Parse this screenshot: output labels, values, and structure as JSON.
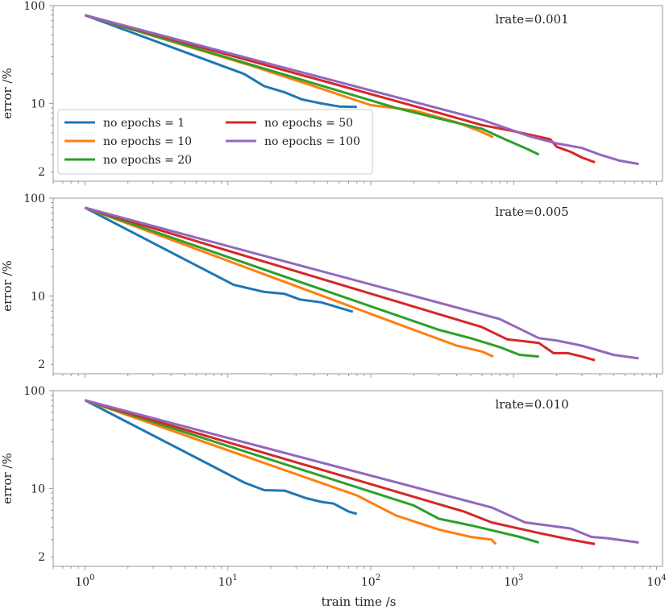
{
  "chart_data": {
    "type": "line",
    "xscale": "log",
    "yscale": "log",
    "xlabel": "train time /s",
    "ylabel": "error /%",
    "xlim": [
      0.6,
      11000
    ],
    "ylim": [
      1.6,
      100
    ],
    "xticks": [
      {
        "value": 1,
        "base": "10",
        "exp": "0"
      },
      {
        "value": 10,
        "base": "10",
        "exp": "1"
      },
      {
        "value": 100,
        "base": "10",
        "exp": "2"
      },
      {
        "value": 1000,
        "base": "10",
        "exp": "3"
      },
      {
        "value": 10000,
        "base": "10",
        "exp": "4"
      }
    ],
    "yticks": [
      {
        "value": 100,
        "label": "100"
      },
      {
        "value": 10,
        "label": "10"
      },
      {
        "value": 2,
        "label": "2"
      }
    ],
    "colors": {
      "no epochs = 1": "#1f77b4",
      "no epochs = 10": "#ff7f0e",
      "no epochs = 20": "#2ca02c",
      "no epochs = 50": "#d62728",
      "no epochs = 100": "#9467bd"
    },
    "legend": [
      "no epochs = 1",
      "no epochs = 50",
      "no epochs = 10",
      "no epochs = 100",
      "no epochs = 20"
    ],
    "panels": [
      {
        "title": "lrate=0.001",
        "series": [
          {
            "name": "no epochs = 1",
            "x": [
              1,
              13,
              18,
              25,
              33,
              45,
              60,
              80
            ],
            "y": [
              80,
              20,
              15,
              13,
              11,
              10,
              9.3,
              9.2
            ]
          },
          {
            "name": "no epochs = 10",
            "x": [
              1,
              15,
              40,
              100,
              200,
              400,
              600,
              720
            ],
            "y": [
              80,
              24,
              15,
              9.6,
              8.5,
              6.4,
              5.1,
              4.5
            ]
          },
          {
            "name": "no epochs = 20",
            "x": [
              1,
              150,
              300,
              600,
              900,
              1200,
              1500
            ],
            "y": [
              80,
              9.0,
              7.0,
              5.5,
              4.2,
              3.5,
              3.0
            ]
          },
          {
            "name": "no epochs = 50",
            "x": [
              1,
              300,
              600,
              1000,
              1800,
              2000,
              2500,
              3000,
              3700
            ],
            "y": [
              80,
              8.0,
              6.0,
              5.2,
              4.3,
              3.6,
              3.2,
              2.8,
              2.5
            ]
          },
          {
            "name": "no epochs = 100",
            "x": [
              1,
              600,
              1300,
              2000,
              3000,
              4000,
              5500,
              7500
            ],
            "y": [
              80,
              6.8,
              4.6,
              3.9,
              3.5,
              3.0,
              2.6,
              2.4
            ]
          }
        ]
      },
      {
        "title": "lrate=0.005",
        "series": [
          {
            "name": "no epochs = 1",
            "x": [
              1,
              11,
              18,
              25,
              32,
              45,
              60,
              75
            ],
            "y": [
              80,
              13,
              11,
              10.5,
              9.2,
              8.6,
              7.6,
              6.9
            ]
          },
          {
            "name": "no epochs = 10",
            "x": [
              1,
              200,
              400,
              600,
              720
            ],
            "y": [
              80,
              4.5,
              3.1,
              2.7,
              2.4
            ]
          },
          {
            "name": "no epochs = 20",
            "x": [
              1,
              300,
              500,
              800,
              1100,
              1500
            ],
            "y": [
              80,
              4.5,
              3.7,
              3.0,
              2.5,
              2.4
            ]
          },
          {
            "name": "no epochs = 50",
            "x": [
              1,
              600,
              900,
              1500,
              1900,
              2400,
              3000,
              3700
            ],
            "y": [
              80,
              4.8,
              3.6,
              3.3,
              2.6,
              2.6,
              2.4,
              2.2
            ]
          },
          {
            "name": "no epochs = 100",
            "x": [
              1,
              800,
              1500,
              2000,
              3000,
              5000,
              7500
            ],
            "y": [
              80,
              5.8,
              3.7,
              3.5,
              3.1,
              2.5,
              2.3
            ]
          }
        ]
      },
      {
        "title": "lrate=0.010",
        "series": [
          {
            "name": "no epochs = 1",
            "x": [
              1,
              13,
              18,
              25,
              35,
              45,
              55,
              70,
              80
            ],
            "y": [
              80,
              11.5,
              9.6,
              9.5,
              8.0,
              7.3,
              7.0,
              5.8,
              5.5
            ]
          },
          {
            "name": "no epochs = 10",
            "x": [
              1,
              80,
              150,
              300,
              500,
              700,
              750
            ],
            "y": [
              80,
              8.5,
              5.3,
              3.8,
              3.2,
              3.0,
              2.7
            ]
          },
          {
            "name": "no epochs = 20",
            "x": [
              1,
              200,
              300,
              500,
              1100,
              1500
            ],
            "y": [
              80,
              6.7,
              4.9,
              4.2,
              3.2,
              2.8
            ]
          },
          {
            "name": "no epochs = 50",
            "x": [
              1,
              450,
              700,
              1500,
              2500,
              3700
            ],
            "y": [
              80,
              5.8,
              4.5,
              3.5,
              3.0,
              2.7
            ]
          },
          {
            "name": "no epochs = 100",
            "x": [
              1,
              700,
              1200,
              2500,
              3500,
              4500,
              7500
            ],
            "y": [
              80,
              6.4,
              4.5,
              3.9,
              3.2,
              3.1,
              2.8
            ]
          }
        ]
      }
    ]
  }
}
